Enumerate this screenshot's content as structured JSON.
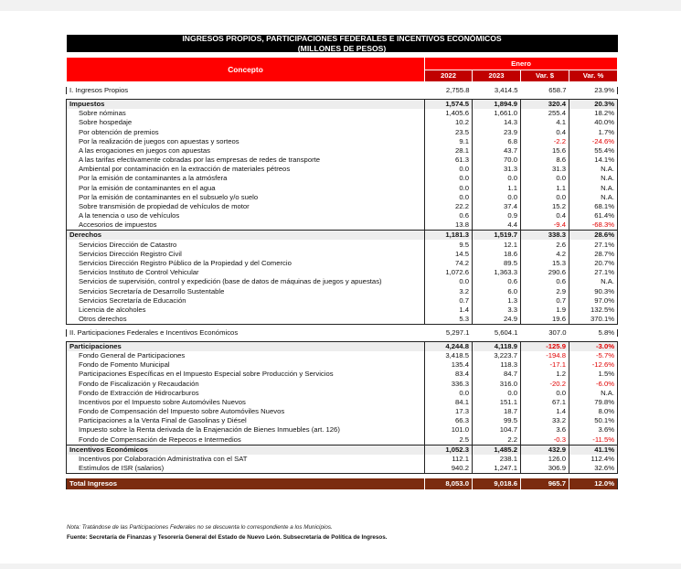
{
  "title_line1": "INGRESOS PROPIOS, PARTICIPACIONES FEDERALES E INCENTIVOS ECONÓMICOS",
  "title_line2": "(MILLONES DE PESOS)",
  "header": {
    "concept": "Concepto",
    "period": "Enero",
    "columns": [
      "2022",
      "2023",
      "Var. $",
      "Var. %"
    ]
  },
  "colors": {
    "header_red": "#ff0000",
    "header_dark_red": "#c00000",
    "section_bg": "#fbe4d5",
    "total_bg": "#7b2b0f",
    "negative": "#e00000"
  },
  "rows": [
    {
      "type": "gap"
    },
    {
      "type": "section",
      "label": "I. Ingresos Propios",
      "v": [
        "2,755.8",
        "3,414.5",
        "658.7",
        "23.9%"
      ]
    },
    {
      "type": "gap"
    },
    {
      "type": "sub",
      "label": "Impuestos",
      "v": [
        "1,574.5",
        "1,894.9",
        "320.4",
        "20.3%"
      ]
    },
    {
      "type": "row",
      "label": "Sobre nóminas",
      "v": [
        "1,405.6",
        "1,661.0",
        "255.4",
        "18.2%"
      ]
    },
    {
      "type": "row",
      "label": "Sobre hospedaje",
      "v": [
        "10.2",
        "14.3",
        "4.1",
        "40.0%"
      ]
    },
    {
      "type": "row",
      "label": "Por obtención de premios",
      "v": [
        "23.5",
        "23.9",
        "0.4",
        "1.7%"
      ]
    },
    {
      "type": "row",
      "label": "Por la realización de juegos con apuestas y sorteos",
      "v": [
        "9.1",
        "6.8",
        "-2.2",
        "-24.6%"
      ]
    },
    {
      "type": "row",
      "label": "A las erogaciones en juegos con apuestas",
      "v": [
        "28.1",
        "43.7",
        "15.6",
        "55.4%"
      ]
    },
    {
      "type": "row",
      "label": "A las tarifas efectivamente cobradas por las empresas de redes de transporte",
      "v": [
        "61.3",
        "70.0",
        "8.6",
        "14.1%"
      ]
    },
    {
      "type": "row",
      "label": "Ambiental por contaminación en la extracción de materiales pétreos",
      "v": [
        "0.0",
        "31.3",
        "31.3",
        "N.A."
      ]
    },
    {
      "type": "row",
      "label": "Por la emisión de contaminantes a la atmósfera",
      "v": [
        "0.0",
        "0.0",
        "0.0",
        "N.A."
      ]
    },
    {
      "type": "row",
      "label": "Por la emisión de contaminantes en el agua",
      "v": [
        "0.0",
        "1.1",
        "1.1",
        "N.A."
      ]
    },
    {
      "type": "row",
      "label": "Por la emisión de contaminantes en el subsuelo y/o suelo",
      "v": [
        "0.0",
        "0.0",
        "0.0",
        "N.A."
      ]
    },
    {
      "type": "row",
      "label": "Sobre transmisión de propiedad de vehículos de motor",
      "v": [
        "22.2",
        "37.4",
        "15.2",
        "68.1%"
      ]
    },
    {
      "type": "row",
      "label": "A la tenencia o uso de vehículos",
      "v": [
        "0.6",
        "0.9",
        "0.4",
        "61.4%"
      ]
    },
    {
      "type": "row",
      "label": "Accesorios de impuestos",
      "v": [
        "13.8",
        "4.4",
        "-9.4",
        "-68.3%"
      ]
    },
    {
      "type": "sub",
      "label": "Derechos",
      "v": [
        "1,181.3",
        "1,519.7",
        "338.3",
        "28.6%"
      ]
    },
    {
      "type": "row",
      "label": "Servicios Dirección de Catastro",
      "v": [
        "9.5",
        "12.1",
        "2.6",
        "27.1%"
      ]
    },
    {
      "type": "row",
      "label": "Servicios Dirección Registro Civil",
      "v": [
        "14.5",
        "18.6",
        "4.2",
        "28.7%"
      ]
    },
    {
      "type": "row",
      "label": "Servicios Dirección Registro Público de la Propiedad y del Comercio",
      "v": [
        "74.2",
        "89.5",
        "15.3",
        "20.7%"
      ]
    },
    {
      "type": "row",
      "label": "Servicios Instituto de Control Vehicular",
      "v": [
        "1,072.6",
        "1,363.3",
        "290.6",
        "27.1%"
      ]
    },
    {
      "type": "row",
      "label": "Servicios de supervisión, control y expedición (base de datos de máquinas de juegos y apuestas)",
      "v": [
        "0.0",
        "0.6",
        "0.6",
        "N.A."
      ]
    },
    {
      "type": "row",
      "label": "Servicios Secretaría de Desarrollo Sustentable",
      "v": [
        "3.2",
        "6.0",
        "2.9",
        "90.3%"
      ]
    },
    {
      "type": "row",
      "label": "Servicios Secretaría de Educación",
      "v": [
        "0.7",
        "1.3",
        "0.7",
        "97.0%"
      ]
    },
    {
      "type": "row",
      "label": "Licencia de alcoholes",
      "v": [
        "1.4",
        "3.3",
        "1.9",
        "132.5%"
      ]
    },
    {
      "type": "row",
      "label": "Otros derechos",
      "v": [
        "5.3",
        "24.9",
        "19.6",
        "370.1%"
      ],
      "end": true
    },
    {
      "type": "gap"
    },
    {
      "type": "section",
      "label": "II. Participaciones Federales e Incentivos Económicos",
      "v": [
        "5,297.1",
        "5,604.1",
        "307.0",
        "5.8%"
      ]
    },
    {
      "type": "gap"
    },
    {
      "type": "sub",
      "label": "Participaciones",
      "v": [
        "4,244.8",
        "4,118.9",
        "-125.9",
        "-3.0%"
      ]
    },
    {
      "type": "row",
      "label": "Fondo General de Participaciones",
      "v": [
        "3,418.5",
        "3,223.7",
        "-194.8",
        "-5.7%"
      ]
    },
    {
      "type": "row",
      "label": "Fondo de Fomento Municipal",
      "v": [
        "135.4",
        "118.3",
        "-17.1",
        "-12.6%"
      ]
    },
    {
      "type": "row",
      "label": "Participaciones Específicas en el Impuesto Especial sobre Producción y Servicios",
      "v": [
        "83.4",
        "84.7",
        "1.2",
        "1.5%"
      ]
    },
    {
      "type": "row",
      "label": "Fondo de Fiscalización y Recaudación",
      "v": [
        "336.3",
        "316.0",
        "-20.2",
        "-6.0%"
      ]
    },
    {
      "type": "row",
      "label": "Fondo de Extracción de Hidrocarburos",
      "v": [
        "0.0",
        "0.0",
        "0.0",
        "N.A."
      ]
    },
    {
      "type": "row",
      "label": "Incentivos por el Impuesto sobre Automóviles Nuevos",
      "v": [
        "84.1",
        "151.1",
        "67.1",
        "79.8%"
      ]
    },
    {
      "type": "row",
      "label": "Fondo de Compensación del Impuesto sobre Automóviles Nuevos",
      "v": [
        "17.3",
        "18.7",
        "1.4",
        "8.0%"
      ]
    },
    {
      "type": "row",
      "label": "Participaciones a la Venta Final de Gasolinas y Diésel",
      "v": [
        "66.3",
        "99.5",
        "33.2",
        "50.1%"
      ]
    },
    {
      "type": "row",
      "label": "Impuesto sobre la Renta derivada de la Enajenación de Bienes Inmuebles (art. 126)",
      "v": [
        "101.0",
        "104.7",
        "3.6",
        "3.6%"
      ]
    },
    {
      "type": "row",
      "label": "Fondo de Compensación de Repecos e Intermedios",
      "v": [
        "2.5",
        "2.2",
        "-0.3",
        "-11.5%"
      ]
    },
    {
      "type": "sub",
      "label": "Incentivos Económicos",
      "v": [
        "1,052.3",
        "1,485.2",
        "432.9",
        "41.1%"
      ]
    },
    {
      "type": "row",
      "label": "Incentivos por Colaboración Administrativa con el SAT",
      "v": [
        "112.1",
        "238.1",
        "126.0",
        "112.4%"
      ]
    },
    {
      "type": "row",
      "label": "Estímulos de ISR (salarios)",
      "v": [
        "940.2",
        "1,247.1",
        "306.9",
        "32.6%"
      ],
      "end": true
    },
    {
      "type": "gap"
    },
    {
      "type": "total",
      "label": "Total Ingresos",
      "v": [
        "8,053.0",
        "9,018.6",
        "965.7",
        "12.0%"
      ]
    }
  ],
  "note": "Nota: Tratándose de las Participaciones Federales no se descuenta lo correspondiente a los Municipios.",
  "source": "Fuente: Secretaría de Finanzas y Tesorería General del Estado de Nuevo León. Subsecretaría de Política de Ingresos."
}
